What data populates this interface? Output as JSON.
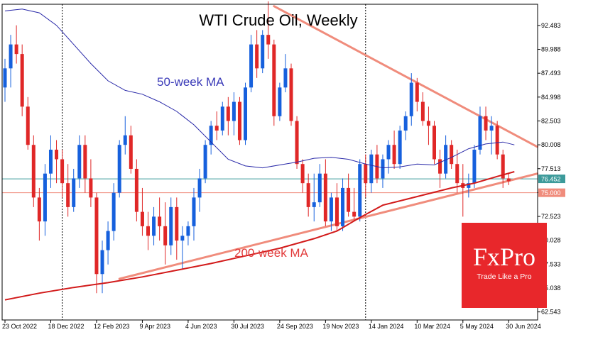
{
  "chart_data": {
    "type": "candlestick",
    "title": "WTI Crude Oil, Weekly",
    "yticks": [
      "92.483",
      "89.988",
      "87.493",
      "84.998",
      "82.503",
      "80.008",
      "77.513",
      "75.018",
      "72.523",
      "70.028",
      "67.533",
      "65.038",
      "62.543"
    ],
    "ylim": [
      61.7,
      94.7
    ],
    "xticks": [
      {
        "label": "23 Oct 2022",
        "i": 0
      },
      {
        "label": "18 Dec 2022",
        "i": 8
      },
      {
        "label": "12 Feb 2023",
        "i": 16
      },
      {
        "label": "9 Apr 2023",
        "i": 24
      },
      {
        "label": "4 Jun 2023",
        "i": 32
      },
      {
        "label": "30 Jul 2023",
        "i": 40
      },
      {
        "label": "24 Sep 2023",
        "i": 48
      },
      {
        "label": "19 Nov 2023",
        "i": 56
      },
      {
        "label": "14 Jan 2024",
        "i": 64
      },
      {
        "label": "10 Mar 2024",
        "i": 72
      },
      {
        "label": "5 May 2024",
        "i": 80
      },
      {
        "label": "30 Jun 2024",
        "i": 88
      }
    ],
    "price_levels": [
      {
        "label": "76.452",
        "value": 76.452,
        "color": "#3c9a9a"
      },
      {
        "label": "75.000",
        "value": 75.0,
        "color": "#f08c7c"
      }
    ],
    "annotations": {
      "ma50": "50-week MA",
      "ma200": "200-week MA"
    },
    "candles": [
      [
        86.0,
        89.0,
        84.5,
        88.0
      ],
      [
        88.0,
        91.5,
        86.0,
        90.5
      ],
      [
        90.5,
        92.5,
        88.5,
        89.5
      ],
      [
        89.5,
        90.5,
        83.0,
        84.0
      ],
      [
        84.0,
        85.0,
        79.5,
        80.0
      ],
      [
        80.0,
        81.0,
        73.5,
        74.5
      ],
      [
        74.5,
        75.5,
        70.0,
        72.0
      ],
      [
        72.0,
        78.0,
        70.5,
        77.0
      ],
      [
        77.0,
        81.0,
        75.5,
        79.5
      ],
      [
        79.5,
        80.5,
        76.0,
        78.5
      ],
      [
        78.5,
        79.5,
        74.5,
        76.0
      ],
      [
        76.0,
        78.0,
        72.5,
        73.5
      ],
      [
        73.5,
        77.5,
        73.0,
        76.5
      ],
      [
        76.5,
        81.0,
        75.5,
        80.0
      ],
      [
        80.0,
        81.0,
        75.0,
        76.5
      ],
      [
        76.5,
        78.5,
        73.5,
        74.5
      ],
      [
        74.5,
        75.0,
        64.5,
        66.5
      ],
      [
        66.5,
        70.0,
        64.5,
        69.0
      ],
      [
        69.0,
        72.0,
        67.5,
        71.0
      ],
      [
        71.0,
        76.0,
        70.0,
        75.0
      ],
      [
        75.0,
        80.5,
        74.5,
        80.0
      ],
      [
        80.0,
        83.0,
        79.0,
        81.0
      ],
      [
        81.0,
        82.0,
        77.0,
        77.5
      ],
      [
        77.5,
        78.5,
        72.0,
        73.0
      ],
      [
        73.0,
        75.5,
        70.5,
        71.5
      ],
      [
        71.5,
        73.0,
        69.0,
        70.5
      ],
      [
        70.5,
        73.5,
        69.5,
        72.5
      ],
      [
        72.5,
        74.5,
        70.0,
        71.5
      ],
      [
        71.5,
        74.0,
        67.5,
        69.5
      ],
      [
        69.5,
        74.5,
        68.5,
        73.5
      ],
      [
        73.5,
        74.5,
        68.0,
        70.0
      ],
      [
        70.0,
        71.5,
        67.0,
        70.5
      ],
      [
        70.5,
        72.0,
        69.5,
        71.5
      ],
      [
        71.5,
        75.5,
        70.0,
        74.5
      ],
      [
        74.5,
        77.5,
        73.0,
        76.5
      ],
      [
        76.5,
        80.5,
        76.0,
        80.0
      ],
      [
        80.0,
        82.5,
        79.0,
        82.0
      ],
      [
        82.0,
        83.5,
        80.5,
        81.5
      ],
      [
        81.5,
        84.5,
        81.0,
        84.0
      ],
      [
        84.0,
        85.0,
        81.0,
        82.5
      ],
      [
        82.5,
        85.5,
        81.0,
        84.5
      ],
      [
        84.5,
        85.0,
        80.0,
        80.5
      ],
      [
        80.5,
        86.5,
        80.0,
        86.0
      ],
      [
        86.0,
        91.5,
        85.5,
        90.5
      ],
      [
        90.5,
        92.0,
        87.0,
        88.0
      ],
      [
        88.0,
        92.0,
        87.5,
        91.5
      ],
      [
        91.5,
        95.0,
        89.0,
        90.5
      ],
      [
        90.5,
        91.0,
        82.0,
        83.0
      ],
      [
        83.0,
        86.5,
        82.5,
        86.0
      ],
      [
        86.0,
        89.5,
        85.5,
        88.0
      ],
      [
        88.0,
        88.5,
        82.0,
        82.5
      ],
      [
        82.5,
        83.0,
        77.5,
        78.0
      ],
      [
        78.0,
        78.5,
        75.0,
        76.0
      ],
      [
        76.0,
        77.0,
        72.5,
        73.5
      ],
      [
        73.5,
        77.0,
        72.0,
        74.0
      ],
      [
        74.0,
        78.0,
        73.5,
        77.0
      ],
      [
        77.0,
        78.5,
        71.5,
        72.0
      ],
      [
        72.0,
        75.0,
        71.0,
        74.5
      ],
      [
        74.5,
        76.0,
        71.0,
        71.5
      ],
      [
        71.5,
        76.5,
        71.0,
        75.5
      ],
      [
        75.5,
        77.0,
        72.5,
        73.0
      ],
      [
        73.0,
        75.5,
        72.0,
        72.5
      ],
      [
        72.5,
        78.5,
        72.0,
        78.0
      ],
      [
        78.0,
        79.0,
        74.5,
        76.0
      ],
      [
        76.0,
        79.5,
        75.0,
        79.0
      ],
      [
        79.0,
        80.0,
        76.0,
        76.5
      ],
      [
        76.5,
        79.0,
        75.5,
        78.5
      ],
      [
        78.5,
        80.5,
        77.0,
        80.0
      ],
      [
        80.0,
        81.5,
        77.5,
        78.0
      ],
      [
        78.0,
        82.0,
        77.5,
        81.5
      ],
      [
        81.5,
        83.5,
        80.5,
        83.0
      ],
      [
        83.0,
        87.5,
        82.0,
        86.5
      ],
      [
        86.5,
        87.0,
        83.5,
        84.5
      ],
      [
        84.5,
        85.5,
        82.0,
        82.5
      ],
      [
        82.5,
        84.0,
        80.0,
        82.0
      ],
      [
        82.0,
        82.5,
        78.0,
        78.5
      ],
      [
        78.5,
        79.5,
        75.5,
        77.0
      ],
      [
        77.0,
        81.0,
        76.5,
        80.0
      ],
      [
        80.0,
        80.5,
        77.5,
        78.0
      ],
      [
        78.0,
        79.5,
        75.0,
        76.0
      ],
      [
        76.0,
        78.0,
        72.5,
        75.5
      ],
      [
        75.5,
        77.0,
        74.5,
        76.0
      ],
      [
        76.0,
        80.0,
        75.5,
        79.5
      ],
      [
        79.5,
        84.0,
        79.0,
        83.0
      ],
      [
        83.0,
        84.0,
        80.5,
        81.5
      ],
      [
        81.5,
        83.0,
        79.0,
        82.0
      ],
      [
        82.0,
        82.5,
        78.5,
        79.0
      ],
      [
        79.0,
        79.5,
        75.5,
        76.5
      ],
      [
        76.5,
        77.0,
        75.8,
        76.2
      ]
    ],
    "ma50": [
      [
        0,
        94.0
      ],
      [
        3,
        94.2
      ],
      [
        6,
        93.8
      ],
      [
        9,
        92.5
      ],
      [
        12,
        90.5
      ],
      [
        15,
        88.5
      ],
      [
        18,
        86.7
      ],
      [
        21,
        85.7
      ],
      [
        24,
        85.3
      ],
      [
        27,
        84.5
      ],
      [
        30,
        83.5
      ],
      [
        33,
        82.1
      ],
      [
        36,
        80.3
      ],
      [
        39,
        78.5
      ],
      [
        42,
        77.8
      ],
      [
        45,
        77.6
      ],
      [
        48,
        77.9
      ],
      [
        51,
        78.2
      ],
      [
        54,
        78.6
      ],
      [
        57,
        78.7
      ],
      [
        60,
        78.5
      ],
      [
        63,
        78.0
      ],
      [
        66,
        77.6
      ],
      [
        69,
        77.7
      ],
      [
        72,
        78.0
      ],
      [
        75,
        77.9
      ],
      [
        78,
        78.7
      ],
      [
        81,
        79.6
      ],
      [
        84,
        80.1
      ],
      [
        87,
        80.3
      ],
      [
        89,
        80.0
      ]
    ],
    "ma200": [
      [
        0,
        63.8
      ],
      [
        6,
        64.5
      ],
      [
        12,
        65.1
      ],
      [
        18,
        65.6
      ],
      [
        24,
        66.2
      ],
      [
        30,
        66.9
      ],
      [
        36,
        67.6
      ],
      [
        42,
        68.4
      ],
      [
        48,
        69.2
      ],
      [
        54,
        70.2
      ],
      [
        58,
        71.0
      ],
      [
        62,
        72.4
      ],
      [
        66,
        73.7
      ],
      [
        70,
        74.3
      ],
      [
        74,
        74.9
      ],
      [
        78,
        75.5
      ],
      [
        82,
        76.0
      ],
      [
        86,
        76.7
      ],
      [
        89,
        77.2
      ]
    ],
    "trendlines": [
      {
        "name": "support",
        "from": [
          20,
          66.0
        ],
        "to": [
          93,
          77.0
        ]
      },
      {
        "name": "resistance",
        "from": [
          47,
          94.5
        ],
        "to": [
          93,
          79.8
        ]
      }
    ],
    "vlines": [
      10,
      63
    ],
    "colors": {
      "up": "#1660dd",
      "down": "#e02727",
      "ma50": "#2828a8",
      "ma200": "#d21a1a",
      "trend": "#f08c7c",
      "grid": "#000000",
      "axis": "#000000"
    }
  },
  "logo": {
    "brand": "FxPro",
    "tagline": "Trade Like a Pro"
  }
}
